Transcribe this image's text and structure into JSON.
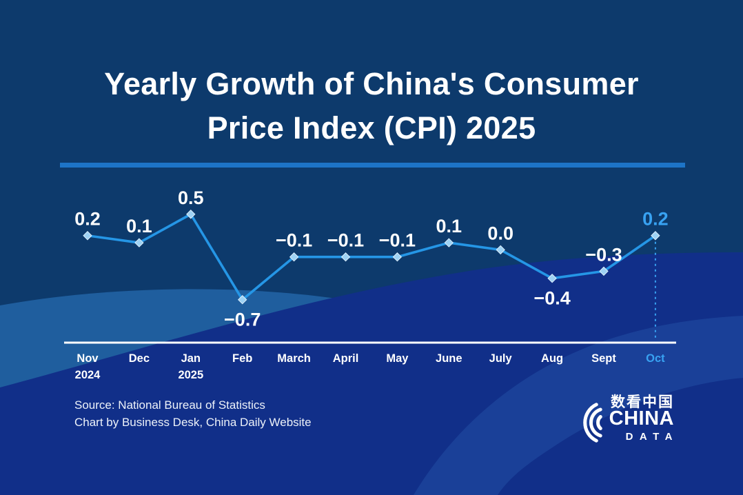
{
  "title": {
    "line1": "Yearly Growth of China's Consumer",
    "line2": "Price Index (CPI) 2025"
  },
  "chart_data": {
    "type": "line",
    "title": "Yearly Growth of China's Consumer Price Index (CPI) 2025",
    "categories": [
      "Nov 2024",
      "Dec",
      "Jan 2025",
      "Feb",
      "March",
      "April",
      "May",
      "June",
      "July",
      "Aug",
      "Sept",
      "Oct"
    ],
    "months": [
      {
        "label": "Nov",
        "sub": "2024"
      },
      {
        "label": "Dec"
      },
      {
        "label": "Jan",
        "sub": "2025"
      },
      {
        "label": "Feb"
      },
      {
        "label": "March"
      },
      {
        "label": "April"
      },
      {
        "label": "May"
      },
      {
        "label": "June"
      },
      {
        "label": "July"
      },
      {
        "label": "Aug"
      },
      {
        "label": "Sept"
      },
      {
        "label": "Oct",
        "highlight": true
      }
    ],
    "values": [
      0.2,
      0.1,
      0.5,
      -0.7,
      -0.1,
      -0.1,
      -0.1,
      0.1,
      0.0,
      -0.4,
      -0.3,
      0.2
    ],
    "point_labels": [
      {
        "text": "0.2",
        "pos": "above"
      },
      {
        "text": "0.1",
        "pos": "above"
      },
      {
        "text": "0.5",
        "pos": "above"
      },
      {
        "text": "−0.7",
        "pos": "below"
      },
      {
        "text": "−0.1",
        "pos": "above"
      },
      {
        "text": "−0.1",
        "pos": "above"
      },
      {
        "text": "−0.1",
        "pos": "above"
      },
      {
        "text": "0.1",
        "pos": "above"
      },
      {
        "text": "0.0",
        "pos": "above"
      },
      {
        "text": "−0.4",
        "pos": "below"
      },
      {
        "text": "−0.3",
        "pos": "above"
      },
      {
        "text": "0.2",
        "pos": "above",
        "highlight": true
      }
    ],
    "highlight_index": 11,
    "ylim": [
      -0.9,
      0.7
    ],
    "grid": false,
    "legend": false
  },
  "source": {
    "line1": "Source: National Bureau of Statistics",
    "line2": "Chart by Business Desk, China Daily Website"
  },
  "logo": {
    "chinese": "数看中国",
    "name_top": "CHINA",
    "name_bottom": "DATA"
  },
  "colors": {
    "background": "#0d3a6c",
    "band_steel": "#1f5e9e",
    "band_royal": "#112f89",
    "band_inner": "#3470bd",
    "line": "#2596e6",
    "marker": "#9ed2f4",
    "marker_edge": "#dceefb",
    "highlight": "#38a2f2",
    "divider": "#1d74c7",
    "axis": "#ffffff",
    "label": "#ffffff"
  }
}
